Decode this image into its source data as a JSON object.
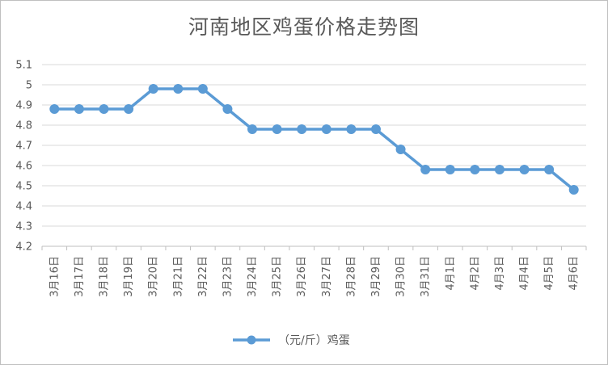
{
  "chart_data": {
    "type": "line",
    "title": "河南地区鸡蛋价格走势图",
    "categories": [
      "3月16日",
      "3月17日",
      "3月18日",
      "3月19日",
      "3月20日",
      "3月21日",
      "3月22日",
      "3月23日",
      "3月24日",
      "3月25日",
      "3月26日",
      "3月27日",
      "3月28日",
      "3月29日",
      "3月30日",
      "3月31日",
      "4月1日",
      "4月2日",
      "4月3日",
      "4月4日",
      "4月5日",
      "4月6日"
    ],
    "series": [
      {
        "name": "（元/斤）鸡蛋",
        "values": [
          4.88,
          4.88,
          4.88,
          4.88,
          4.98,
          4.98,
          4.98,
          4.88,
          4.78,
          4.78,
          4.78,
          4.78,
          4.78,
          4.78,
          4.68,
          4.58,
          4.58,
          4.58,
          4.58,
          4.58,
          4.58,
          4.48
        ],
        "color": "#5b9bd5"
      }
    ],
    "y_ticks": [
      "4.2",
      "4.3",
      "4.4",
      "4.5",
      "4.6",
      "4.7",
      "4.8",
      "4.9",
      "5",
      "5.1"
    ],
    "ylim": [
      4.2,
      5.1
    ],
    "grid": true,
    "legend": "bottom"
  }
}
